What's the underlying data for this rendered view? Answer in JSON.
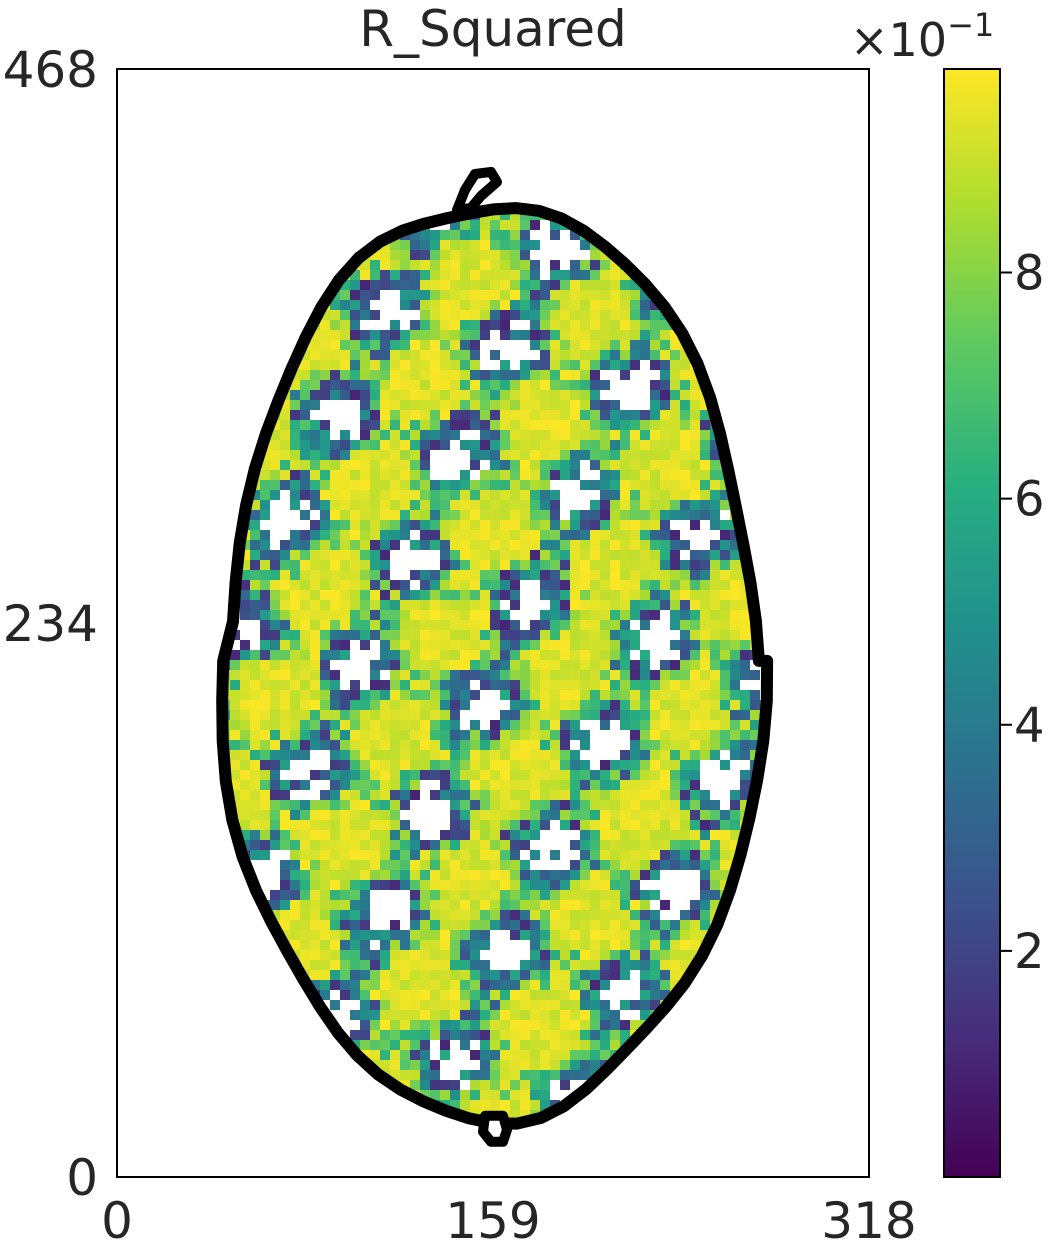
{
  "chart_data": {
    "type": "heatmap",
    "title": "R_Squared",
    "x_ticks": [
      "0",
      "159",
      "318"
    ],
    "y_ticks": [
      "0",
      "234",
      "468"
    ],
    "xlim": [
      0,
      318
    ],
    "ylim": [
      0,
      468
    ],
    "colorbar": {
      "colormap": "viridis",
      "multiplier": "×10",
      "exponent": "−1",
      "ticks": [
        "2",
        "4",
        "6",
        "8"
      ],
      "range": [
        0.0,
        0.98
      ]
    },
    "region": {
      "shape": "ellipse",
      "center": [
        159,
        218
      ],
      "semi_axis_x": 115,
      "semi_axis_y": 193,
      "outline_color": "#000000"
    },
    "value_distribution": "mostly 0.7 to 0.98 (yellow/green) with scattered low values and white NaN patches"
  }
}
